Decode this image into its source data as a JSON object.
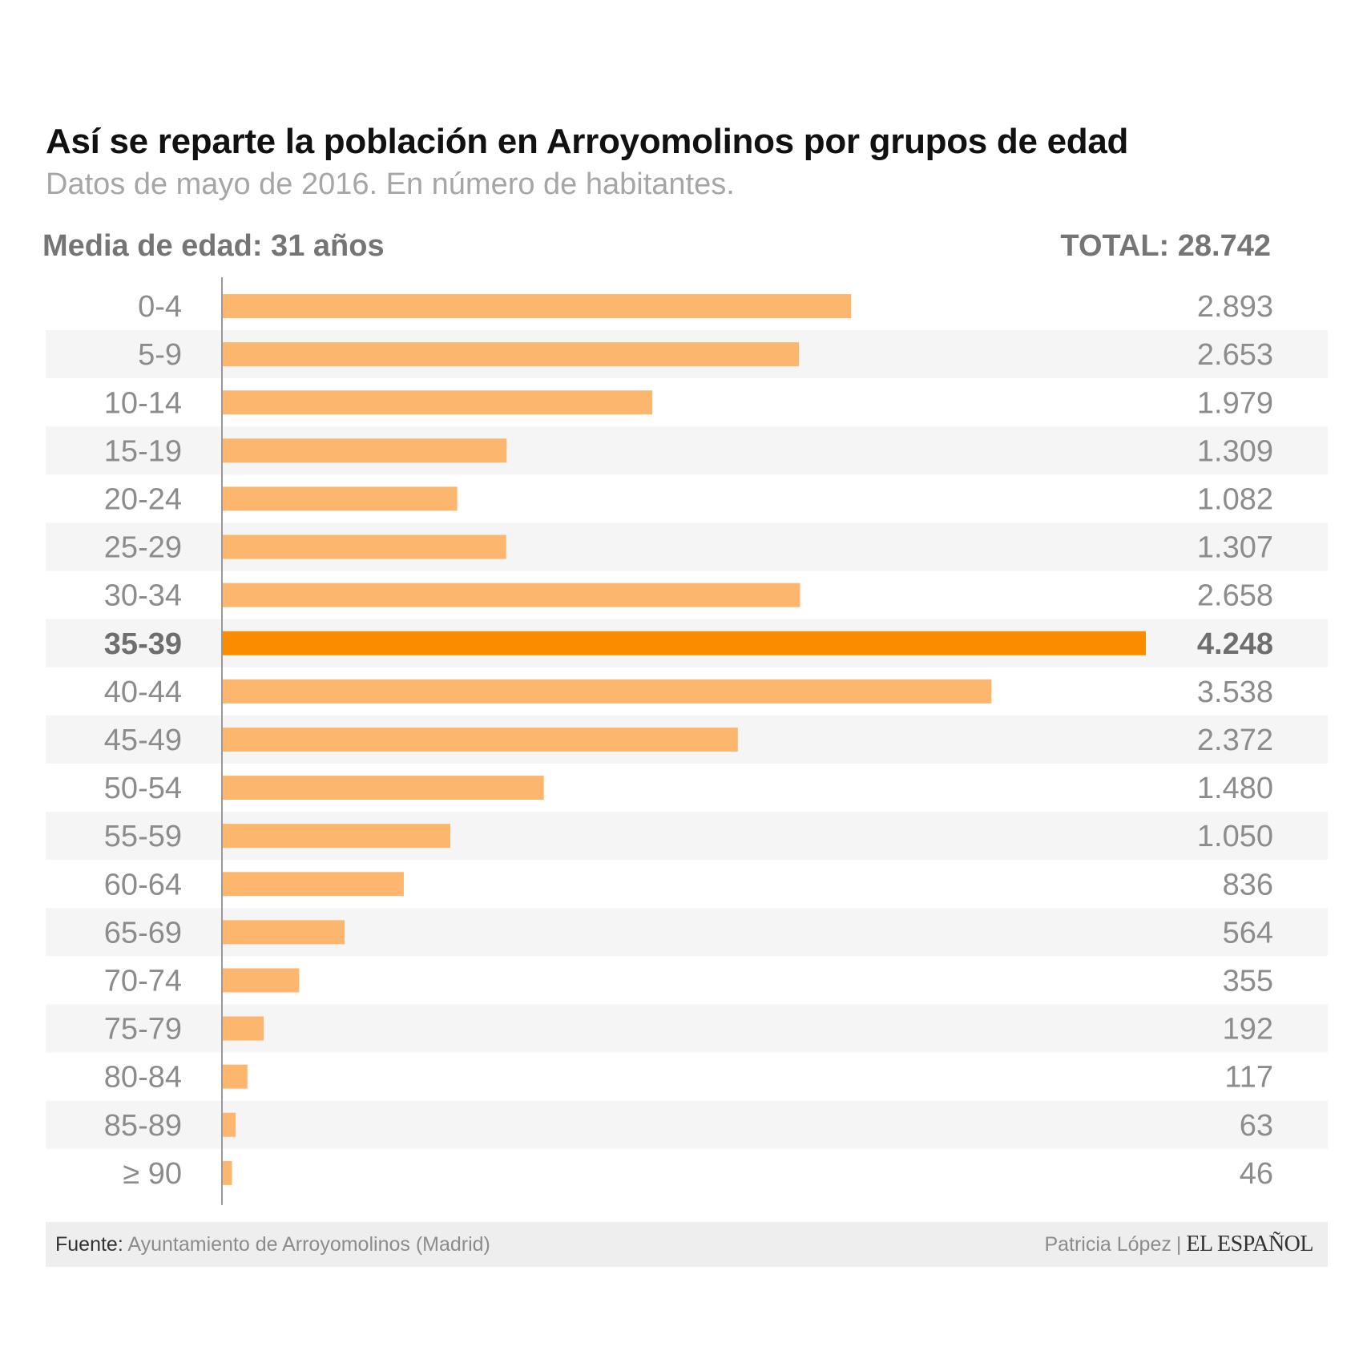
{
  "header": {
    "title": "Así se reparte la población en Arroyomolinos por grupos de edad",
    "subtitle": "Datos de mayo de 2016. En número de habitantes.",
    "average_age": "Media de edad: 31 años",
    "total": "TOTAL: 28.742"
  },
  "chart_data": {
    "type": "bar",
    "orientation": "horizontal",
    "categories": [
      "0-4",
      "5-9",
      "10-14",
      "15-19",
      "20-24",
      "25-29",
      "30-34",
      "35-39",
      "40-44",
      "45-49",
      "50-54",
      "55-59",
      "60-64",
      "65-69",
      "70-74",
      "75-79",
      "80-84",
      "85-89",
      "≥ 90"
    ],
    "values": [
      2893,
      2653,
      1979,
      1309,
      1082,
      1307,
      2658,
      4248,
      3538,
      2372,
      1480,
      1050,
      836,
      564,
      355,
      192,
      117,
      63,
      46
    ],
    "value_labels": [
      "2.893",
      "2.653",
      "1.979",
      "1.309",
      "1.082",
      "1.307",
      "2.658",
      "4.248",
      "3.538",
      "2.372",
      "1.480",
      "1.050",
      "836",
      "564",
      "355",
      "192",
      "117",
      "63",
      "46"
    ],
    "highlight_index": 7,
    "xlim": [
      0,
      4248
    ],
    "colors": {
      "bar": "#fdb66e",
      "highlight": "#fb8c00",
      "stripe": "#f5f5f5",
      "axis": "#999999"
    },
    "grid": false,
    "legend": "none"
  },
  "footer": {
    "source_label": "Fuente:",
    "source_text": "Ayuntamiento de Arroyomolinos (Madrid)",
    "author": "Patricia López",
    "separator": "|",
    "brand": "EL ESPAÑOL"
  }
}
